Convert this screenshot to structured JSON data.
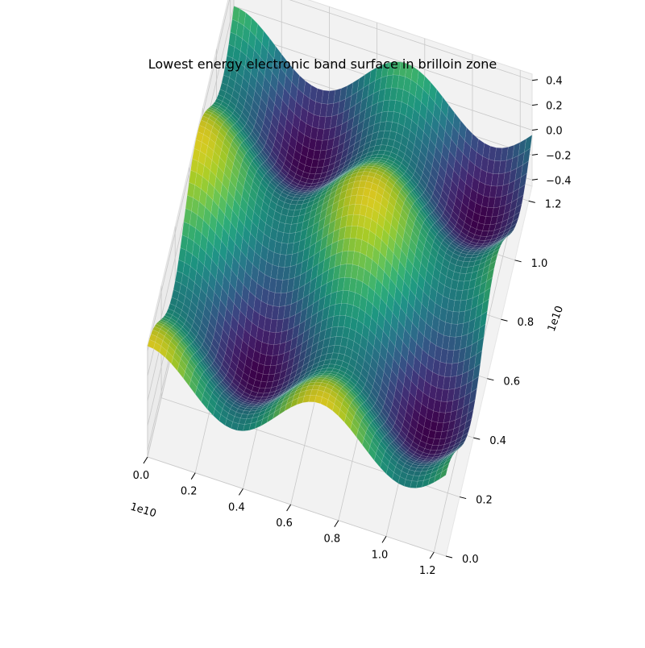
{
  "chart_data": {
    "type": "surface3d",
    "title": "Lowest energy electronic band surface in brilloin zone",
    "colormap": "viridis",
    "grid": true,
    "x_axis": {
      "ticks": [
        "0.0",
        "0.2",
        "0.4",
        "0.6",
        "0.8",
        "1.0",
        "1.2"
      ],
      "tick_values": [
        0.0,
        0.2,
        0.4,
        0.6,
        0.8,
        1.0,
        1.2
      ],
      "offset_label": "1e10",
      "range": [
        0,
        1.25
      ]
    },
    "y_axis": {
      "ticks": [
        "0.0",
        "0.2",
        "0.4",
        "0.6",
        "0.8",
        "1.0",
        "1.2"
      ],
      "tick_values": [
        0.0,
        0.2,
        0.4,
        0.6,
        0.8,
        1.0,
        1.2
      ],
      "offset_label": "1e10",
      "range": [
        0,
        1.25
      ]
    },
    "z_axis": {
      "ticks": [
        "0.4",
        "0.2",
        "0.0",
        "−0.2",
        "−0.4"
      ],
      "tick_values": [
        0.4,
        0.2,
        0.0,
        -0.2,
        -0.4
      ],
      "range": [
        -0.45,
        0.45
      ]
    },
    "function": "z = 0.22*cos(2πx/0.72) + 0.22*cos(2πy/0.72) with x, y in units of 1e10",
    "approx_z_range": [
      -0.44,
      0.44
    ]
  }
}
